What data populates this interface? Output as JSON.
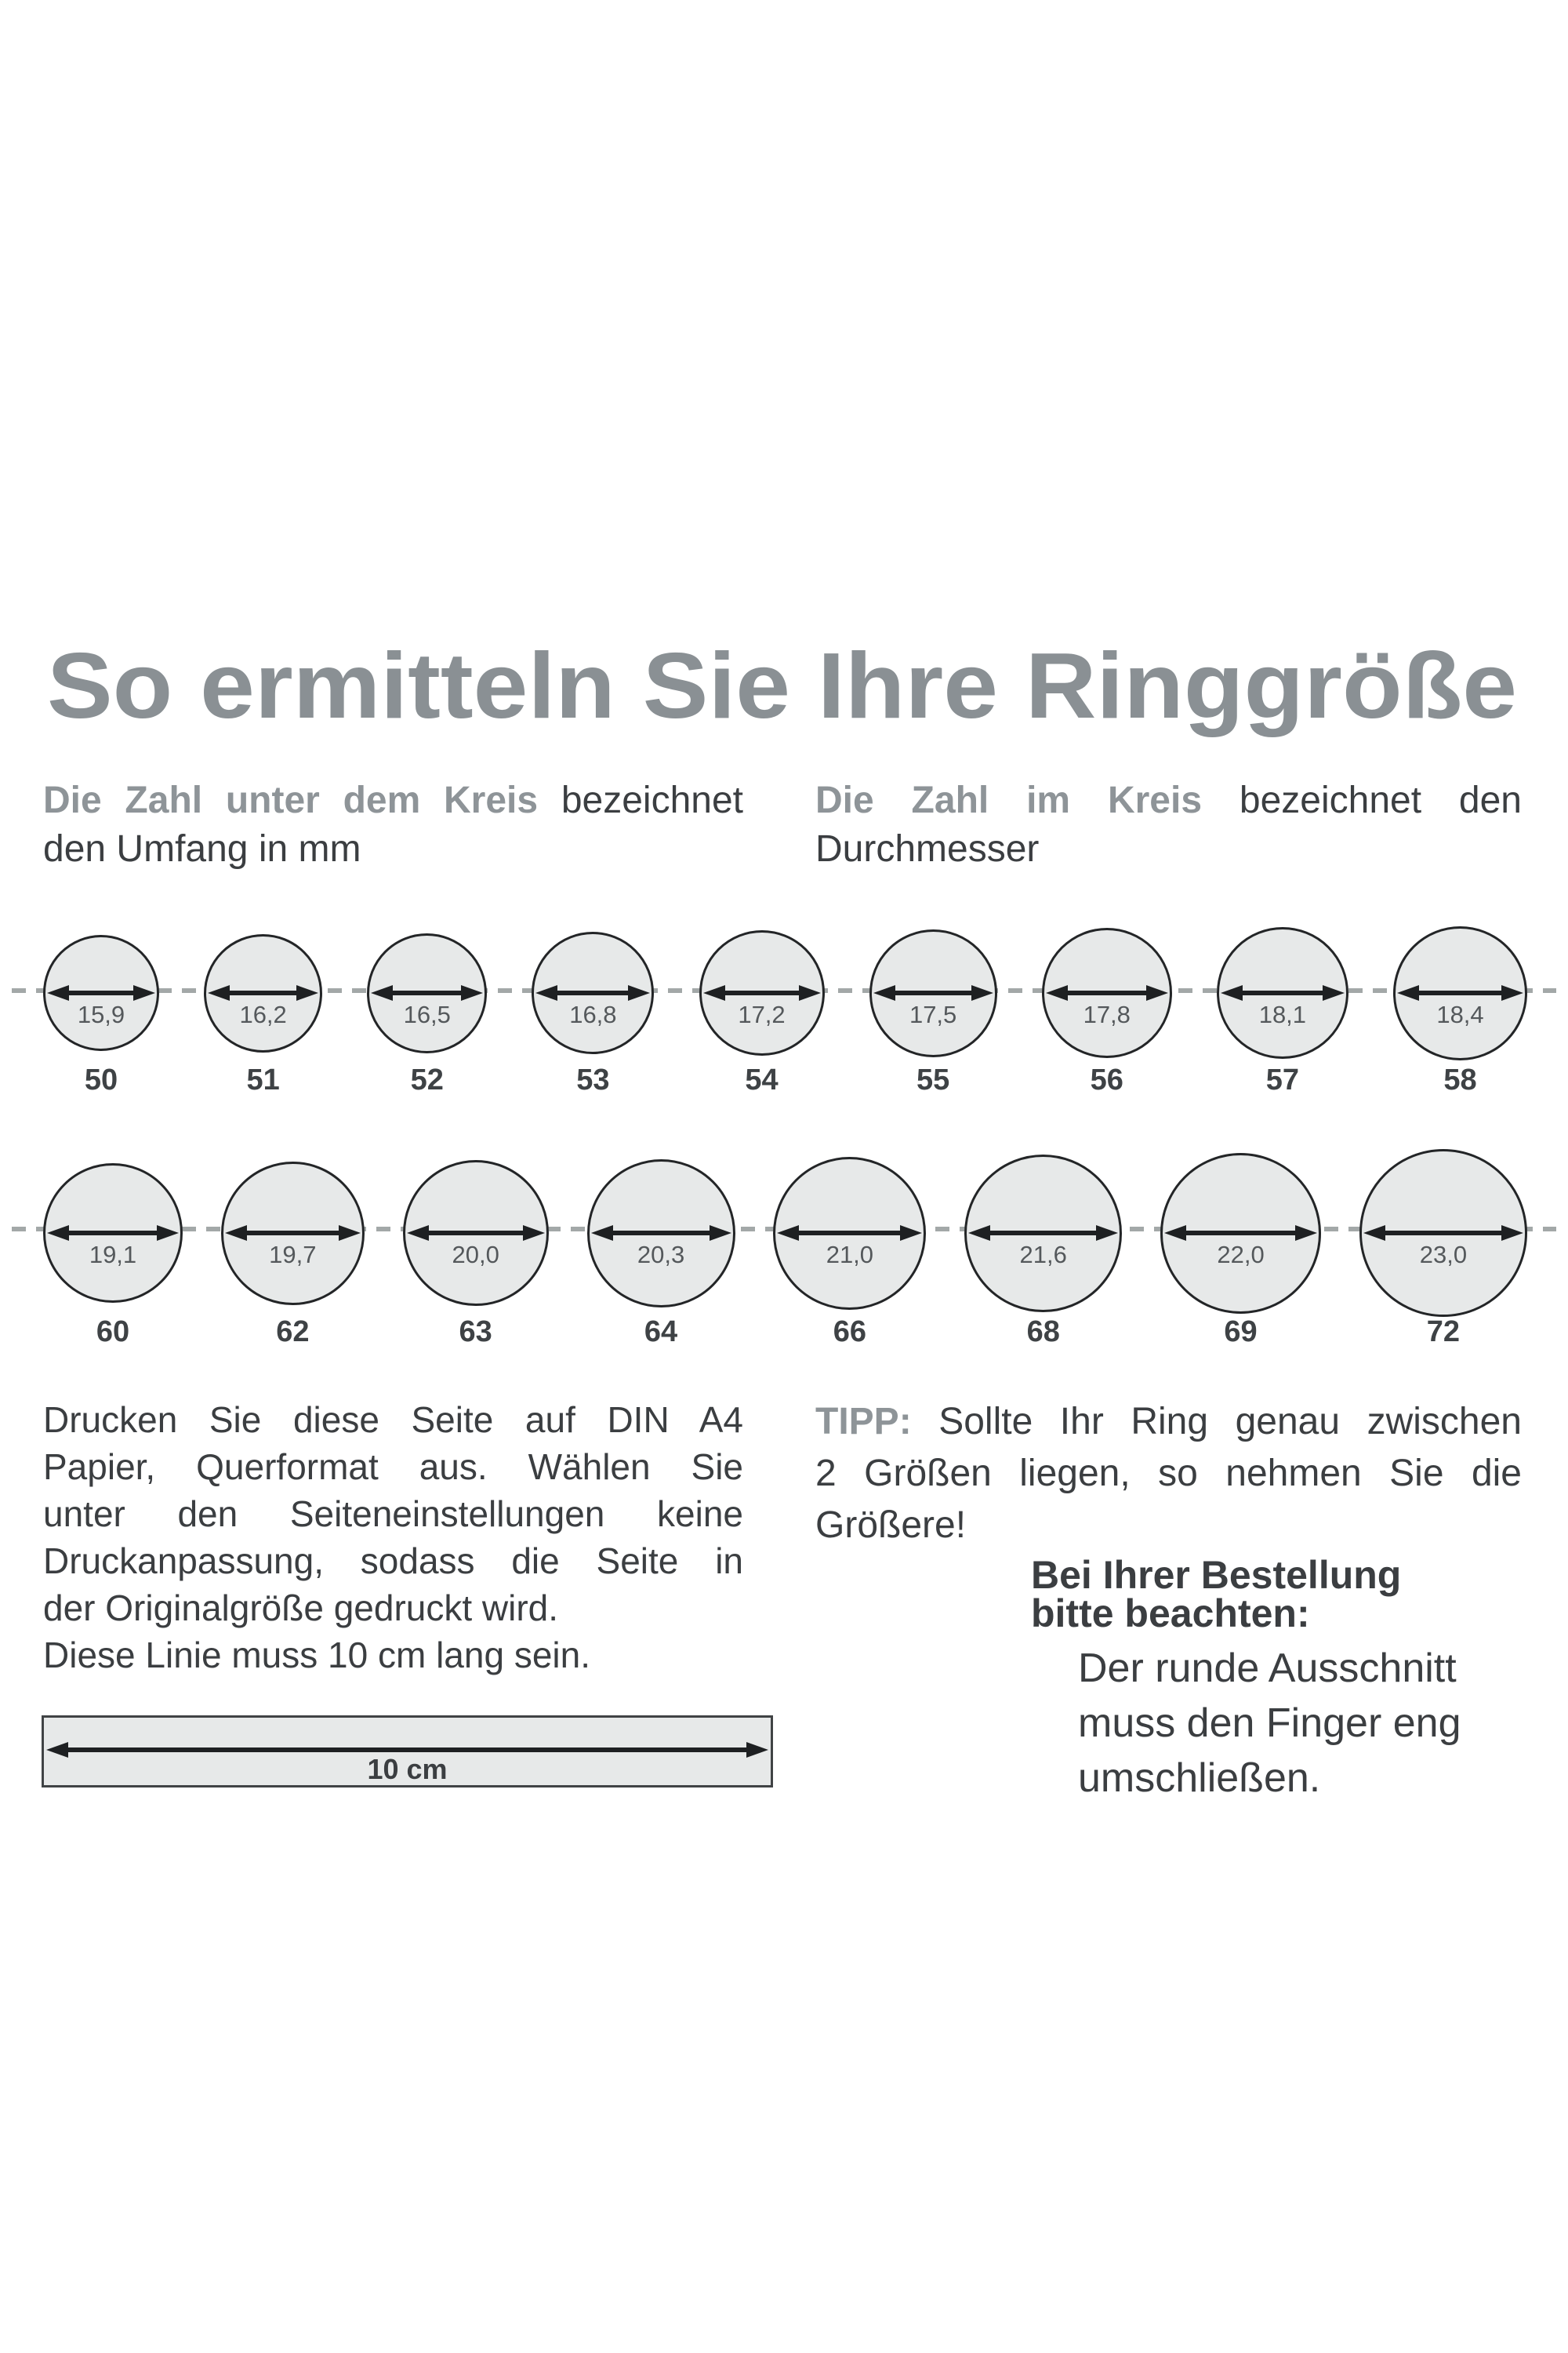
{
  "title": "So ermitteln Sie Ihre Ringgröße",
  "colors": {
    "heading_gray": "#8a9094",
    "accent_gray": "#8e9498",
    "text_dark": "#3b3e41",
    "circle_fill": "#e7e9e9",
    "circle_stroke": "#232527",
    "arrow": "#1e2022",
    "dashed_line": "#a3a8a8",
    "mm_label": "#54585b",
    "size_number": "#3e4245"
  },
  "legend_left": {
    "bold": "Die Zahl unter dem Kreis",
    "rest": " bezeichnet",
    "line2": "den Umfang in mm"
  },
  "legend_right": {
    "bold": "Die Zahl im Kreis",
    "rest": " bezeichnet den",
    "line2": "Durchmesser"
  },
  "rows": [
    {
      "items": [
        {
          "mm": 15.9,
          "diameter": "15,9",
          "size": "50"
        },
        {
          "mm": 16.2,
          "diameter": "16,2",
          "size": "51"
        },
        {
          "mm": 16.5,
          "diameter": "16,5",
          "size": "52"
        },
        {
          "mm": 16.8,
          "diameter": "16,8",
          "size": "53"
        },
        {
          "mm": 17.2,
          "diameter": "17,2",
          "size": "54"
        },
        {
          "mm": 17.5,
          "diameter": "17,5",
          "size": "55"
        },
        {
          "mm": 17.8,
          "diameter": "17,8",
          "size": "56"
        },
        {
          "mm": 18.1,
          "diameter": "18,1",
          "size": "57"
        },
        {
          "mm": 18.4,
          "diameter": "18,4",
          "size": "58"
        }
      ]
    },
    {
      "items": [
        {
          "mm": 19.1,
          "diameter": "19,1",
          "size": "60"
        },
        {
          "mm": 19.7,
          "diameter": "19,7",
          "size": "62"
        },
        {
          "mm": 20.0,
          "diameter": "20,0",
          "size": "63"
        },
        {
          "mm": 20.3,
          "diameter": "20,3",
          "size": "64"
        },
        {
          "mm": 21.0,
          "diameter": "21,0",
          "size": "66"
        },
        {
          "mm": 21.6,
          "diameter": "21,6",
          "size": "68"
        },
        {
          "mm": 22.0,
          "diameter": "22,0",
          "size": "69"
        },
        {
          "mm": 23.0,
          "diameter": "23,0",
          "size": "72"
        }
      ]
    }
  ],
  "instructions": {
    "l1": "Drucken Sie diese Seite auf DIN A4",
    "l2": "Papier, Querformat aus. Wählen Sie",
    "l3": "unter den Seiteneinstellungen keine",
    "l4": "Druckanpassung, sodass die Seite in",
    "l5": "der Originalgröße gedruckt wird.",
    "l6": "Diese Linie muss 10 cm lang sein."
  },
  "tip": {
    "label": "TIPP:",
    "l1_rest": " Sollte Ihr Ring genau zwischen",
    "l2": "2 Größen liegen, so nehmen Sie die",
    "l3": "Größere!"
  },
  "order_note": {
    "l1": "Bei Ihrer Bestellung",
    "l2": "bitte beachten:"
  },
  "fit_note": {
    "l1": "Der runde Ausschnitt",
    "l2": "muss den Finger eng",
    "l3": "umschließen."
  },
  "ruler": {
    "label": "10 cm"
  }
}
